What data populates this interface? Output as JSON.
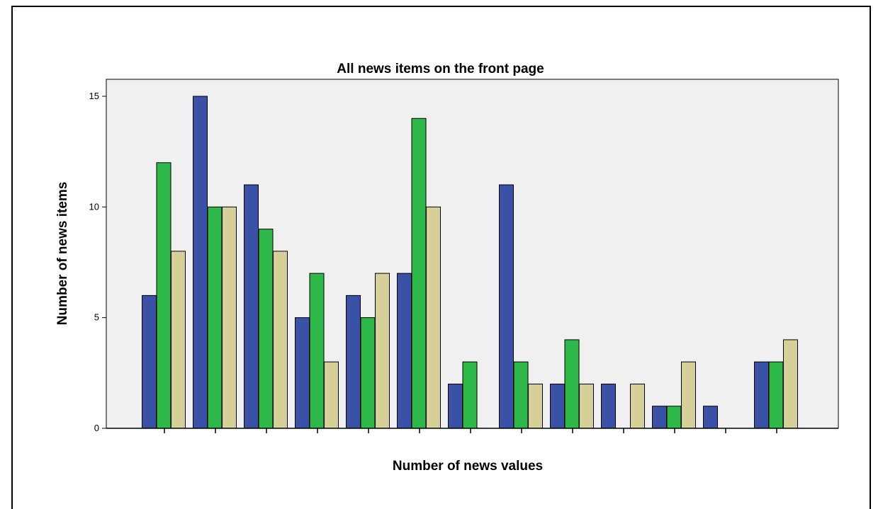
{
  "chart_data": {
    "type": "bar",
    "title": "All news items on the front page",
    "xlabel": "Number of news values",
    "ylabel": "Number of news items",
    "ylim": [
      0,
      15
    ],
    "yticks": [
      "0",
      "5",
      "10",
      "15"
    ],
    "categories": [
      "",
      "",
      "",
      "",
      "",
      "",
      "",
      "",
      "",
      "",
      "",
      "",
      ""
    ],
    "series": [
      {
        "color": "#3a51a8",
        "values": [
          6,
          15,
          11,
          5,
          6,
          7,
          2,
          11,
          2,
          2,
          1,
          1,
          3
        ]
      },
      {
        "color": "#2eb84a",
        "values": [
          12,
          10,
          9,
          7,
          5,
          14,
          3,
          3,
          4,
          0,
          1,
          0,
          3
        ]
      },
      {
        "color": "#d6cf98",
        "values": [
          8,
          10,
          8,
          3,
          7,
          10,
          0,
          2,
          2,
          2,
          3,
          0,
          4
        ]
      }
    ],
    "grid": false,
    "background": "#f0f0f0"
  }
}
